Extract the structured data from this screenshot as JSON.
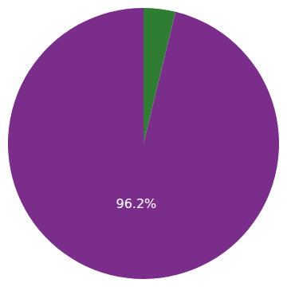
{
  "chart_data": {
    "type": "pie",
    "values": [
      3.8,
      96.2
    ],
    "colors": [
      "#2e7d32",
      "#7b2d8b"
    ],
    "data_labels": true,
    "value_labels": [
      null,
      "96.2%"
    ]
  }
}
